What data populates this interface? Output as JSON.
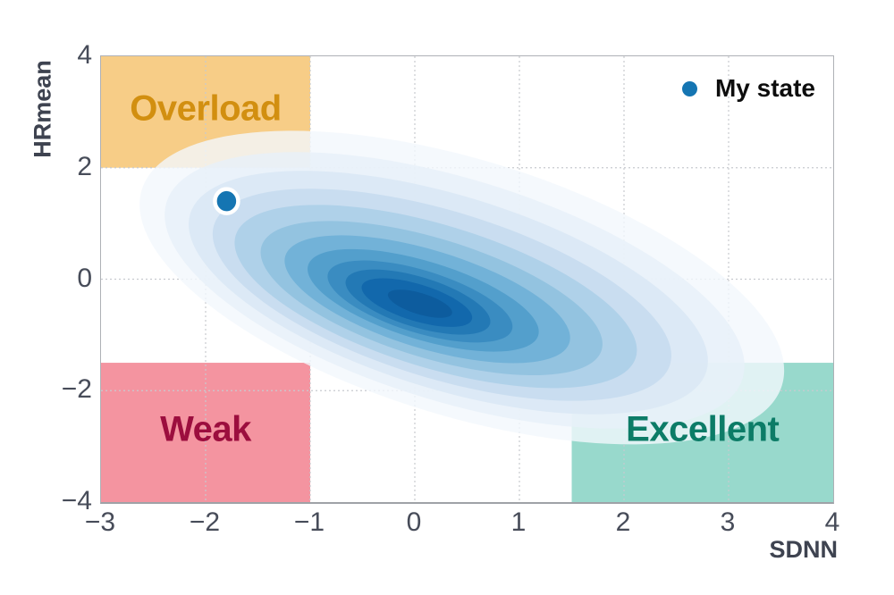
{
  "chart_data": {
    "type": "kde_contour_2d",
    "title": "",
    "xlabel": "SDNN",
    "ylabel": "HRmean",
    "xlim": [
      -3,
      4
    ],
    "ylim": [
      -4,
      4
    ],
    "grid": true,
    "legend_position": "upper-right",
    "x_ticks": [
      {
        "v": -3,
        "label": "−3"
      },
      {
        "v": -2,
        "label": "−2"
      },
      {
        "v": -1,
        "label": "−1"
      },
      {
        "v": 0,
        "label": "0"
      },
      {
        "v": 1,
        "label": "1"
      },
      {
        "v": 2,
        "label": "2"
      },
      {
        "v": 3,
        "label": "3"
      },
      {
        "v": 4,
        "label": "4"
      }
    ],
    "y_ticks": [
      {
        "v": 4,
        "label": "4"
      },
      {
        "v": 2,
        "label": "2"
      },
      {
        "v": 0,
        "label": "0"
      },
      {
        "v": -2,
        "label": "−2"
      },
      {
        "v": -4,
        "label": "−4"
      }
    ],
    "grid_x": [
      -2,
      -1,
      0,
      1,
      2,
      3
    ],
    "grid_y": [
      2,
      0,
      -2
    ],
    "zones": [
      {
        "label": "Overload",
        "x0": -3,
        "x1": -1,
        "y0": 2,
        "y1": 4,
        "fill": "#f7cd87",
        "text_color": "#d28f10"
      },
      {
        "label": "Weak",
        "x0": -3,
        "x1": -1,
        "y0": -4,
        "y1": -1.5,
        "fill": "#f494a0",
        "text_color": "#9c0e3e"
      },
      {
        "label": "Excellent",
        "x0": 1.5,
        "x1": 4,
        "y0": -4,
        "y1": -1.5,
        "fill": "#98d9cc",
        "text_color": "#0c7c67"
      }
    ],
    "density": {
      "description": "nested KDE contour levels, tilted ellipses (screen deg), light to dark blues",
      "tilt_deg": 17,
      "levels": [
        {
          "cx": 0.45,
          "cy": -0.15,
          "rx": 3.2,
          "ry": 2.3,
          "color": "#f3f8fd",
          "opacity": 0.8
        },
        {
          "cx": 0.38,
          "cy": -0.2,
          "rx": 2.88,
          "ry": 2.0,
          "color": "#e7f0f9",
          "opacity": 0.8
        },
        {
          "cx": 0.32,
          "cy": -0.24,
          "rx": 2.58,
          "ry": 1.74,
          "color": "#d9e7f4",
          "opacity": 0.85
        },
        {
          "cx": 0.26,
          "cy": -0.28,
          "rx": 2.28,
          "ry": 1.5,
          "color": "#c6dcf0",
          "opacity": 0.9
        },
        {
          "cx": 0.2,
          "cy": -0.31,
          "rx": 2.0,
          "ry": 1.28,
          "color": "#afd1e9",
          "opacity": 1
        },
        {
          "cx": 0.16,
          "cy": -0.34,
          "rx": 1.7,
          "ry": 1.07,
          "color": "#93c3e0",
          "opacity": 1
        },
        {
          "cx": 0.12,
          "cy": -0.36,
          "rx": 1.42,
          "ry": 0.88,
          "color": "#72b2d8",
          "opacity": 1
        },
        {
          "cx": 0.08,
          "cy": -0.38,
          "rx": 1.15,
          "ry": 0.7,
          "color": "#539fcc",
          "opacity": 1
        },
        {
          "cx": 0.05,
          "cy": -0.4,
          "rx": 0.92,
          "ry": 0.56,
          "color": "#3a8cc1",
          "opacity": 1
        },
        {
          "cx": 0.03,
          "cy": -0.41,
          "rx": 0.72,
          "ry": 0.45,
          "color": "#2379b5",
          "opacity": 1
        },
        {
          "cx": 0.02,
          "cy": -0.42,
          "rx": 0.55,
          "ry": 0.33,
          "color": "#1268ac",
          "opacity": 1
        },
        {
          "cx": 0.05,
          "cy": -0.44,
          "rx": 0.32,
          "ry": 0.19,
          "color": "#0d5c9e",
          "opacity": 1
        }
      ]
    },
    "point": {
      "x": -1.8,
      "y": 1.4,
      "color": "#1575b2",
      "label": "My state"
    }
  },
  "legend": {
    "label": "My state",
    "marker_color": "#1575b2",
    "text_color": "#0d0d0d"
  },
  "style_colors": {
    "grid": "#c7cacf",
    "spine": "#aeb1b6",
    "tick_label": "#474c59",
    "axis_label": "#3e4350",
    "point_ring": "#ffffff"
  }
}
